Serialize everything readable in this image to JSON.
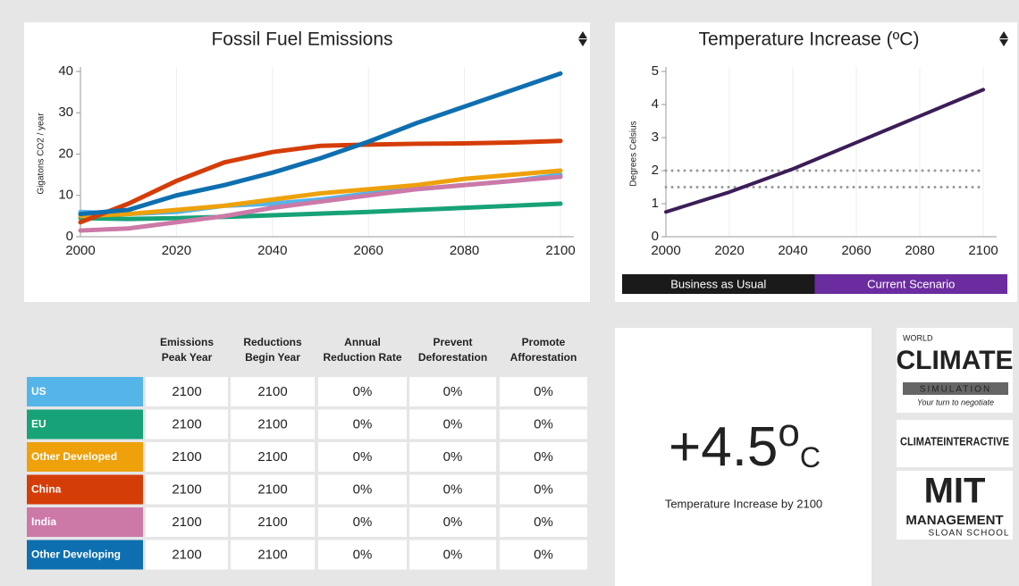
{
  "chart_data": [
    {
      "type": "line",
      "title": "Fossil Fuel Emissions",
      "y_label": "Gigatons CO2 / year",
      "x": [
        2000,
        2010,
        2020,
        2030,
        2040,
        2050,
        2060,
        2070,
        2080,
        2090,
        2100
      ],
      "xlim": [
        2000,
        2100
      ],
      "xticks": [
        2000,
        2020,
        2040,
        2060,
        2080,
        2100
      ],
      "ylim": [
        0,
        40
      ],
      "yticks": [
        0,
        10,
        20,
        30,
        40
      ],
      "grid": true,
      "series": [
        {
          "name": "US",
          "color": "#55b4e8",
          "values": [
            6,
            5.5,
            6,
            7.5,
            8,
            9,
            10.5,
            11.5,
            12.5,
            13.5,
            15
          ]
        },
        {
          "name": "EU",
          "color": "#17a277",
          "values": [
            4.5,
            4.3,
            4.5,
            4.8,
            5.2,
            5.6,
            6,
            6.5,
            7,
            7.5,
            8
          ]
        },
        {
          "name": "Other Developed",
          "color": "#eea10b",
          "values": [
            5,
            5.5,
            6.5,
            7.5,
            9,
            10.5,
            11.5,
            12.5,
            14,
            15,
            16
          ]
        },
        {
          "name": "China",
          "color": "#d53d08",
          "values": [
            3.5,
            8,
            13.5,
            18,
            20.5,
            22,
            22.3,
            22.5,
            22.6,
            22.8,
            23.2
          ]
        },
        {
          "name": "India",
          "color": "#cc79a8",
          "values": [
            1.5,
            2,
            3.5,
            5,
            7,
            8.5,
            10,
            11.5,
            12.5,
            13.5,
            14.5
          ]
        },
        {
          "name": "Other Developing",
          "color": "#0e6fb0",
          "values": [
            5.5,
            6.5,
            10,
            12.5,
            15.5,
            19,
            23,
            27.5,
            31.5,
            35.5,
            39.5
          ]
        }
      ]
    },
    {
      "type": "line",
      "title": "Temperature Increase (ºC)",
      "y_label": "Degrees Celsius",
      "x": [
        2000,
        2010,
        2020,
        2030,
        2040,
        2050,
        2060,
        2070,
        2080,
        2090,
        2100
      ],
      "xlim": [
        2000,
        2100
      ],
      "xticks": [
        2000,
        2020,
        2040,
        2060,
        2080,
        2100
      ],
      "ylim": [
        0,
        5
      ],
      "yticks": [
        0,
        1,
        2,
        3,
        4,
        5
      ],
      "grid": true,
      "reference_lines": [
        2,
        1.5
      ],
      "series": [
        {
          "color": "#3b1d58",
          "values": [
            0.75,
            1.05,
            1.35,
            1.7,
            2.05,
            2.45,
            2.85,
            3.25,
            3.65,
            4.05,
            4.45
          ]
        }
      ],
      "legend": [
        {
          "name": "Business as Usual",
          "color": "#1a1a1a"
        },
        {
          "name": "Current Scenario",
          "color": "#6a2c9f"
        }
      ]
    }
  ],
  "table": {
    "columns": [
      [
        "Emissions",
        "Peak Year"
      ],
      [
        "Reductions",
        "Begin Year"
      ],
      [
        "Annual",
        "Reduction Rate"
      ],
      [
        "Prevent",
        "Deforestation"
      ],
      [
        "Promote",
        "Afforestation"
      ]
    ],
    "rows": [
      [
        "2100",
        "2100",
        "0%",
        "0%",
        "0%"
      ],
      [
        "2100",
        "2100",
        "0%",
        "0%",
        "0%"
      ],
      [
        "2100",
        "2100",
        "0%",
        "0%",
        "0%"
      ],
      [
        "2100",
        "2100",
        "0%",
        "0%",
        "0%"
      ],
      [
        "2100",
        "2100",
        "0%",
        "0%",
        "0%"
      ],
      [
        "2100",
        "2100",
        "0%",
        "0%",
        "0%"
      ]
    ]
  },
  "summary": {
    "value": "+4.5",
    "degree": "o",
    "unit": "C",
    "caption": "Temperature Increase by 2100"
  },
  "logos": {
    "world": "WORLD",
    "climate": "CLIMATE",
    "simulation": "SIMULATION",
    "tagline": "Your turn to negotiate",
    "interactive": "CLIMATEINTERACTIVE",
    "mit": "MIT",
    "management": "MANAGEMENT",
    "sloan": "SLOAN SCHOOL"
  }
}
